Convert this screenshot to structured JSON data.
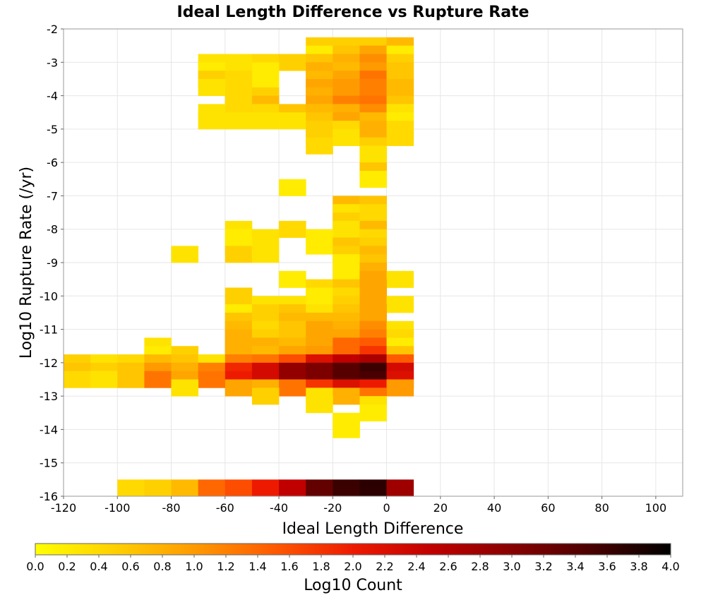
{
  "chart_data": {
    "type": "heatmap",
    "title": "Ideal Length Difference vs Rupture Rate",
    "xlabel": "Ideal Length Difference",
    "ylabel": "Log10 Rupture Rate (/yr)",
    "xlim": [
      -120,
      110
    ],
    "ylim": [
      -16,
      -2
    ],
    "xticks": [
      "-120",
      "-100",
      "-80",
      "-60",
      "-40",
      "-20",
      "0",
      "20",
      "40",
      "60",
      "80",
      "100"
    ],
    "yticks": [
      "-2",
      "-3",
      "-4",
      "-5",
      "-6",
      "-7",
      "-8",
      "-9",
      "-10",
      "-11",
      "-12",
      "-13",
      "-14",
      "-15",
      "-16"
    ],
    "bin_x_width": 10,
    "bin_y_height": 0.5,
    "grid": true,
    "colorbar": {
      "label": "Log10 Count",
      "range": [
        0,
        4
      ],
      "ticks": [
        "0.0",
        "0.2",
        "0.4",
        "0.6",
        "0.8",
        "1.0",
        "1.2",
        "1.4",
        "1.6",
        "1.8",
        "2.0",
        "2.2",
        "2.4",
        "2.6",
        "2.8",
        "3.0",
        "3.2",
        "3.4",
        "3.6",
        "3.8",
        "4.0"
      ],
      "stops": [
        "#ffff00",
        "#ffd000",
        "#ff9a00",
        "#ff5a00",
        "#ee1a00",
        "#c00000",
        "#880000",
        "#4a0000",
        "#000000"
      ]
    },
    "cells": [
      [
        -30,
        -2.5,
        0.5
      ],
      [
        -20,
        -2.5,
        0.5
      ],
      [
        -10,
        -2.5,
        0.5
      ],
      [
        0,
        -2.5,
        0.7
      ],
      [
        -30,
        -2.75,
        0.2
      ],
      [
        -20,
        -2.75,
        0.6
      ],
      [
        -10,
        -2.75,
        0.9
      ],
      [
        0,
        -2.75,
        0.2
      ],
      [
        -70,
        -3.0,
        0.3
      ],
      [
        -60,
        -3.0,
        0.3
      ],
      [
        -50,
        -3.0,
        0.4
      ],
      [
        -40,
        -3.0,
        0.5
      ],
      [
        -30,
        -3.0,
        0.6
      ],
      [
        -20,
        -3.0,
        0.8
      ],
      [
        -10,
        -3.0,
        1.1
      ],
      [
        0,
        -3.0,
        0.5
      ],
      [
        -70,
        -3.25,
        0.2
      ],
      [
        -50,
        -3.25,
        0.2
      ],
      [
        -30,
        -3.25,
        0.8
      ],
      [
        -20,
        -3.25,
        0.7
      ],
      [
        -10,
        -3.25,
        1.0
      ],
      [
        0,
        -3.25,
        0.6
      ],
      [
        -70,
        -3.5,
        0.5
      ],
      [
        -60,
        -3.5,
        0.4
      ],
      [
        -30,
        -3.5,
        0.7
      ],
      [
        -20,
        -3.5,
        0.9
      ],
      [
        -10,
        -3.5,
        1.3
      ],
      [
        0,
        -3.5,
        0.6
      ],
      [
        -70,
        -3.75,
        0.3
      ],
      [
        -50,
        -3.75,
        0.2
      ],
      [
        -30,
        -3.75,
        0.9
      ],
      [
        -20,
        -3.75,
        1.0
      ],
      [
        -10,
        -3.75,
        1.2
      ],
      [
        0,
        -3.75,
        0.7
      ],
      [
        -60,
        -4.0,
        0.4
      ],
      [
        -50,
        -4.0,
        0.5
      ],
      [
        -30,
        -4.0,
        0.8
      ],
      [
        -20,
        -4.0,
        1.0
      ],
      [
        -10,
        -4.0,
        1.2
      ],
      [
        0,
        -4.0,
        0.7
      ],
      [
        -60,
        -4.25,
        0.4
      ],
      [
        -50,
        -4.25,
        0.7
      ],
      [
        -30,
        -4.25,
        0.9
      ],
      [
        -20,
        -4.25,
        1.2
      ],
      [
        -10,
        -4.25,
        1.3
      ],
      [
        0,
        -4.25,
        0.6
      ],
      [
        -70,
        -4.5,
        0.3
      ],
      [
        -50,
        -4.5,
        0.4
      ],
      [
        -40,
        -4.5,
        0.6
      ],
      [
        -30,
        -4.5,
        0.7
      ],
      [
        -20,
        -4.5,
        0.8
      ],
      [
        -10,
        -4.5,
        1.1
      ],
      [
        0,
        -4.5,
        0.3
      ],
      [
        -70,
        -4.75,
        0.3
      ],
      [
        -60,
        -4.75,
        0.3
      ],
      [
        -50,
        -4.75,
        0.3
      ],
      [
        -40,
        -4.75,
        0.3
      ],
      [
        -30,
        -4.75,
        0.6
      ],
      [
        -20,
        -4.75,
        0.9
      ],
      [
        -10,
        -4.75,
        0.7
      ],
      [
        0,
        -4.75,
        0.2
      ],
      [
        -30,
        -5.0,
        0.5
      ],
      [
        -20,
        -5.0,
        0.4
      ],
      [
        -10,
        -5.0,
        0.8
      ],
      [
        0,
        -5.0,
        0.4
      ],
      [
        -30,
        -5.25,
        0.5
      ],
      [
        -20,
        -5.25,
        0.3
      ],
      [
        -10,
        -5.25,
        0.8
      ],
      [
        0,
        -5.25,
        0.4
      ],
      [
        -30,
        -5.5,
        0.4
      ],
      [
        -10,
        -5.5,
        0.5
      ],
      [
        -10,
        -5.75,
        0.3
      ],
      [
        -10,
        -6.0,
        0.3
      ],
      [
        -10,
        -6.25,
        0.6
      ],
      [
        -10,
        -6.5,
        0.2
      ],
      [
        -40,
        -6.75,
        0.2
      ],
      [
        -20,
        -7.25,
        0.7
      ],
      [
        -10,
        -7.25,
        0.6
      ],
      [
        -20,
        -7.5,
        0.3
      ],
      [
        -10,
        -7.5,
        0.4
      ],
      [
        -20,
        -7.75,
        0.5
      ],
      [
        -10,
        -7.75,
        0.4
      ],
      [
        -60,
        -8.0,
        0.3
      ],
      [
        -40,
        -8.0,
        0.4
      ],
      [
        -20,
        -8.0,
        0.3
      ],
      [
        -10,
        -8.0,
        0.7
      ],
      [
        -60,
        -8.25,
        0.2
      ],
      [
        -50,
        -8.25,
        0.3
      ],
      [
        -30,
        -8.25,
        0.2
      ],
      [
        -10,
        -8.25,
        0.4
      ],
      [
        -60,
        -8.5,
        0.2
      ],
      [
        -30,
        -8.5,
        0.2
      ],
      [
        -20,
        -8.5,
        0.6
      ],
      [
        -10,
        -8.5,
        0.5
      ],
      [
        -80,
        -8.75,
        0.3
      ],
      [
        -60,
        -8.75,
        0.5
      ],
      [
        -50,
        -8.75,
        0.3
      ],
      [
        -20,
        -8.75,
        0.5
      ],
      [
        -10,
        -8.75,
        0.7
      ],
      [
        -20,
        -9.0,
        0.2
      ],
      [
        -10,
        -9.0,
        0.6
      ],
      [
        -20,
        -9.25,
        0.2
      ],
      [
        -10,
        -9.25,
        0.8
      ],
      [
        -40,
        -9.5,
        0.2
      ],
      [
        -10,
        -9.5,
        0.9
      ],
      [
        0,
        -9.5,
        0.3
      ],
      [
        -30,
        -9.75,
        0.4
      ],
      [
        -20,
        -9.75,
        0.6
      ],
      [
        -10,
        -9.75,
        0.9
      ],
      [
        -60,
        -10.0,
        0.5
      ],
      [
        -30,
        -10.0,
        0.2
      ],
      [
        -20,
        -10.0,
        0.4
      ],
      [
        -10,
        -10.0,
        0.9
      ],
      [
        -50,
        -10.25,
        0.3
      ],
      [
        -40,
        -10.25,
        0.3
      ],
      [
        -20,
        -10.25,
        0.5
      ],
      [
        -10,
        -10.25,
        0.9
      ],
      [
        0,
        -10.25,
        0.3
      ],
      [
        -60,
        -10.5,
        0.2
      ],
      [
        -50,
        -10.5,
        0.5
      ],
      [
        -40,
        -10.5,
        0.6
      ],
      [
        -30,
        -10.5,
        0.3
      ],
      [
        -20,
        -10.5,
        0.6
      ],
      [
        -10,
        -10.5,
        0.9
      ],
      [
        -60,
        -10.75,
        0.6
      ],
      [
        -50,
        -10.75,
        0.5
      ],
      [
        -40,
        -10.75,
        0.7
      ],
      [
        -30,
        -10.75,
        0.7
      ],
      [
        -20,
        -10.75,
        0.7
      ],
      [
        -10,
        -10.75,
        0.9
      ],
      [
        -60,
        -11.0,
        0.7
      ],
      [
        -50,
        -11.0,
        0.4
      ],
      [
        -40,
        -11.0,
        0.6
      ],
      [
        -30,
        -11.0,
        0.9
      ],
      [
        -20,
        -11.0,
        0.8
      ],
      [
        -10,
        -11.0,
        1.1
      ],
      [
        0,
        -11.0,
        0.3
      ],
      [
        -60,
        -11.25,
        0.8
      ],
      [
        -50,
        -11.25,
        0.5
      ],
      [
        -40,
        -11.25,
        0.6
      ],
      [
        -30,
        -11.25,
        0.9
      ],
      [
        -20,
        -11.25,
        0.9
      ],
      [
        -10,
        -11.25,
        1.2
      ],
      [
        0,
        -11.25,
        0.4
      ],
      [
        -90,
        -11.5,
        0.3
      ],
      [
        -60,
        -11.5,
        0.8
      ],
      [
        -50,
        -11.5,
        0.8
      ],
      [
        -40,
        -11.5,
        0.7
      ],
      [
        -30,
        -11.5,
        0.9
      ],
      [
        -20,
        -11.5,
        1.4
      ],
      [
        -10,
        -11.5,
        1.5
      ],
      [
        0,
        -11.5,
        0.2
      ],
      [
        -90,
        -11.75,
        0.2
      ],
      [
        -80,
        -11.75,
        0.5
      ],
      [
        -60,
        -11.75,
        0.8
      ],
      [
        -50,
        -11.75,
        0.7
      ],
      [
        -40,
        -11.75,
        0.9
      ],
      [
        -30,
        -11.75,
        1.0
      ],
      [
        -20,
        -11.75,
        1.4
      ],
      [
        -10,
        -11.75,
        1.8
      ],
      [
        0,
        -11.75,
        0.6
      ],
      [
        -120,
        -12.0,
        0.5
      ],
      [
        -110,
        -12.0,
        0.3
      ],
      [
        -100,
        -12.0,
        0.4
      ],
      [
        -90,
        -12.0,
        0.7
      ],
      [
        -80,
        -12.0,
        0.6
      ],
      [
        -70,
        -12.0,
        0.3
      ],
      [
        -60,
        -12.0,
        1.2
      ],
      [
        -50,
        -12.0,
        1.3
      ],
      [
        -40,
        -12.0,
        1.6
      ],
      [
        -30,
        -12.0,
        2.2
      ],
      [
        -20,
        -12.0,
        2.5
      ],
      [
        -10,
        -12.0,
        2.7
      ],
      [
        0,
        -12.0,
        1.5
      ],
      [
        -120,
        -12.25,
        0.6
      ],
      [
        -110,
        -12.25,
        0.5
      ],
      [
        -100,
        -12.25,
        0.6
      ],
      [
        -90,
        -12.25,
        1.0
      ],
      [
        -80,
        -12.25,
        0.8
      ],
      [
        -70,
        -12.25,
        1.2
      ],
      [
        -60,
        -12.25,
        1.9
      ],
      [
        -50,
        -12.25,
        2.3
      ],
      [
        -40,
        -12.25,
        2.9
      ],
      [
        -30,
        -12.25,
        3.1
      ],
      [
        -20,
        -12.25,
        3.4
      ],
      [
        -10,
        -12.25,
        3.6
      ],
      [
        0,
        -12.25,
        2.3
      ],
      [
        -120,
        -12.5,
        0.4
      ],
      [
        -110,
        -12.5,
        0.3
      ],
      [
        -100,
        -12.5,
        0.6
      ],
      [
        -90,
        -12.5,
        1.3
      ],
      [
        -80,
        -12.5,
        0.9
      ],
      [
        -70,
        -12.5,
        1.3
      ],
      [
        -60,
        -12.5,
        2.0
      ],
      [
        -50,
        -12.5,
        2.3
      ],
      [
        -40,
        -12.5,
        2.9
      ],
      [
        -30,
        -12.5,
        3.1
      ],
      [
        -20,
        -12.5,
        3.4
      ],
      [
        -10,
        -12.5,
        3.5
      ],
      [
        0,
        -12.5,
        2.2
      ],
      [
        -80,
        -12.75,
        0.3
      ],
      [
        -60,
        -12.75,
        0.9
      ],
      [
        -50,
        -12.75,
        0.8
      ],
      [
        -40,
        -12.75,
        1.3
      ],
      [
        -30,
        -12.75,
        1.8
      ],
      [
        -20,
        -12.75,
        2.2
      ],
      [
        -10,
        -12.75,
        2.0
      ],
      [
        0,
        -12.75,
        1.0
      ],
      [
        -50,
        -13.0,
        0.5
      ],
      [
        -30,
        -13.0,
        0.3
      ],
      [
        -20,
        -13.0,
        0.8
      ],
      [
        -10,
        -13.0,
        1.3
      ],
      [
        -30,
        -13.25,
        0.3
      ],
      [
        -10,
        -13.25,
        0.3
      ],
      [
        -10,
        -13.5,
        0.2
      ],
      [
        -20,
        -13.75,
        0.2
      ],
      [
        -20,
        -14.0,
        0.2
      ],
      [
        -100,
        -15.75,
        0.4
      ],
      [
        -90,
        -15.75,
        0.5
      ],
      [
        -80,
        -15.75,
        0.7
      ],
      [
        -70,
        -15.75,
        1.4
      ],
      [
        -60,
        -15.75,
        1.6
      ],
      [
        -50,
        -15.75,
        2.0
      ],
      [
        -40,
        -15.75,
        2.5
      ],
      [
        -30,
        -15.75,
        3.3
      ],
      [
        -20,
        -15.75,
        3.6
      ],
      [
        -10,
        -15.75,
        3.7
      ],
      [
        0,
        -15.75,
        2.8
      ]
    ]
  }
}
